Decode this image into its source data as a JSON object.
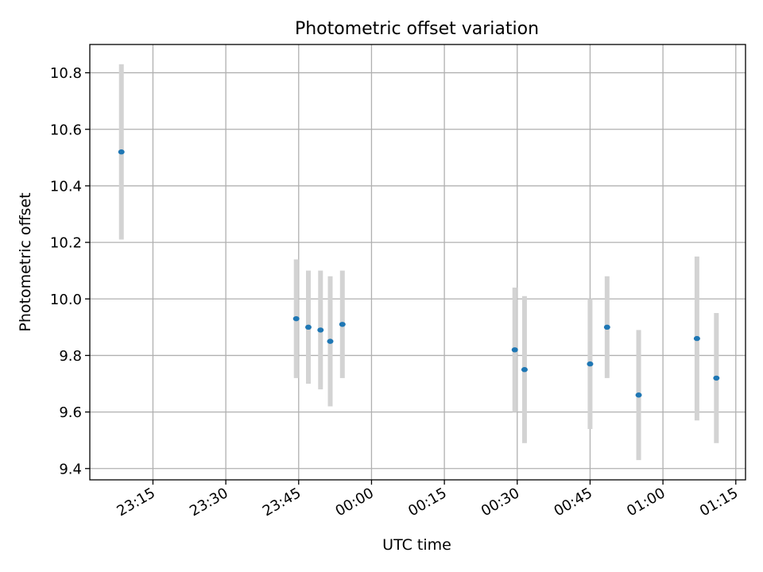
{
  "chart_data": {
    "type": "scatter",
    "title": "Photometric offset variation",
    "xlabel": "UTC time",
    "ylabel": "Photometric offset",
    "x_unit": "minutes",
    "xlim": [
      "23:02",
      "01:17"
    ],
    "ylim": [
      9.36,
      10.9
    ],
    "x_ticks": [
      "23:15",
      "23:30",
      "23:45",
      "00:00",
      "00:15",
      "00:30",
      "00:45",
      "01:00",
      "01:15"
    ],
    "y_ticks": [
      9.4,
      9.6,
      9.8,
      10.0,
      10.2,
      10.4,
      10.6,
      10.8
    ],
    "y_tick_labels": [
      "9.4",
      "9.6",
      "9.8",
      "10.0",
      "10.2",
      "10.4",
      "10.6",
      "10.8"
    ],
    "grid": true,
    "marker_color": "#1f77b4",
    "errorbar_color": "#d3d3d3",
    "points": [
      {
        "x": "23:08.5",
        "y": 10.52,
        "yerr": 0.31
      },
      {
        "x": "23:44.5",
        "y": 9.93,
        "yerr": 0.21
      },
      {
        "x": "23:47.0",
        "y": 9.9,
        "yerr": 0.2
      },
      {
        "x": "23:49.5",
        "y": 9.89,
        "yerr": 0.21
      },
      {
        "x": "23:51.5",
        "y": 9.85,
        "yerr": 0.23
      },
      {
        "x": "23:54.0",
        "y": 9.91,
        "yerr": 0.19
      },
      {
        "x": "00:29.5",
        "y": 9.82,
        "yerr": 0.22
      },
      {
        "x": "00:31.5",
        "y": 9.75,
        "yerr": 0.26
      },
      {
        "x": "00:45.0",
        "y": 9.77,
        "yerr": 0.23
      },
      {
        "x": "00:48.5",
        "y": 9.9,
        "yerr": 0.18
      },
      {
        "x": "00:55.0",
        "y": 9.66,
        "yerr": 0.23
      },
      {
        "x": "01:07.0",
        "y": 9.86,
        "yerr": 0.29
      },
      {
        "x": "01:11.0",
        "y": 9.72,
        "yerr": 0.23
      }
    ]
  }
}
